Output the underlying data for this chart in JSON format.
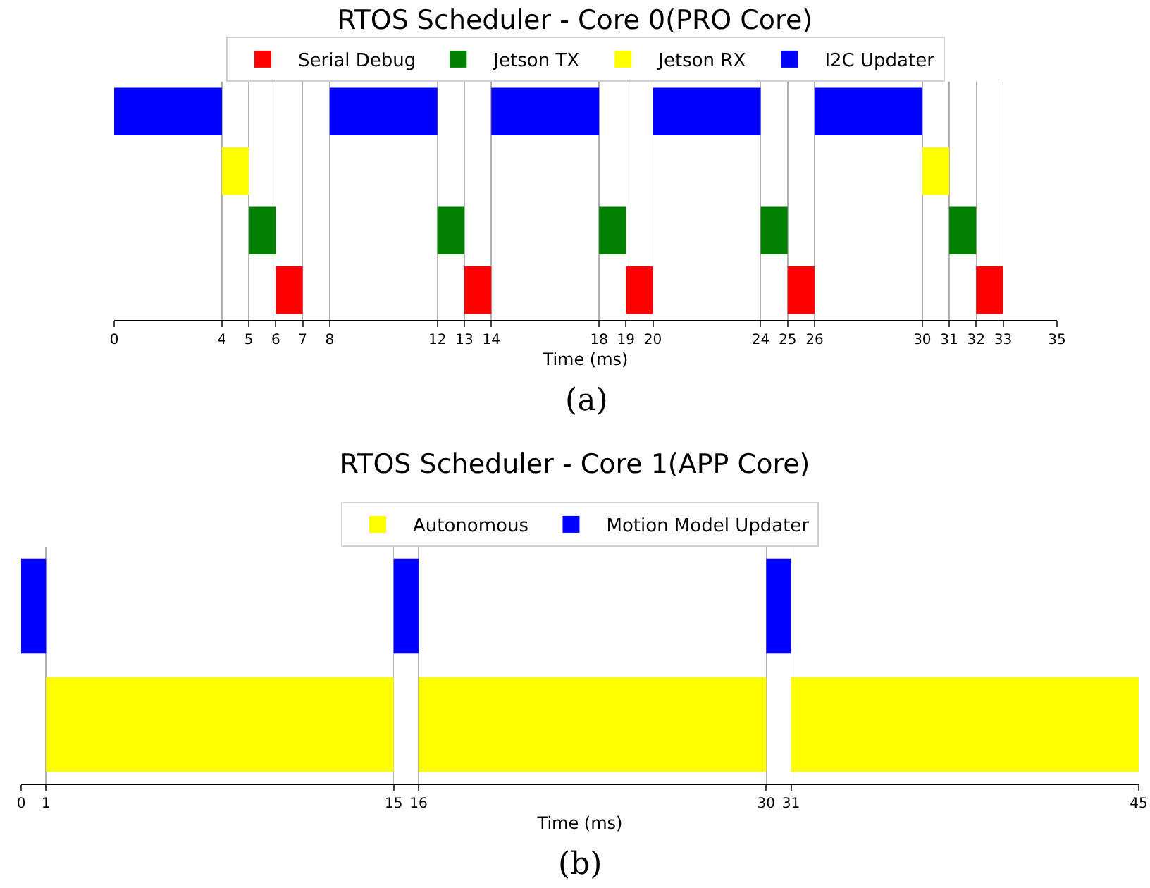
{
  "chart_data": [
    {
      "type": "bar",
      "orientation": "horizontal",
      "title": "RTOS Scheduler - Core 0(PRO Core)",
      "xlabel": "Time (ms)",
      "categories": [
        null,
        null,
        null,
        null
      ],
      "series": [
        {
          "name": "Serial Debug",
          "color": "#ff0000",
          "values": [
            null,
            null,
            null,
            1
          ],
          "base": [
            null,
            null,
            null,
            6
          ]
        },
        {
          "name": "Jetson TX",
          "color": "#008000",
          "values": [
            null,
            null,
            1,
            null
          ],
          "base": [
            null,
            null,
            5,
            null
          ]
        },
        {
          "name": "Jetson RX",
          "color": "#ffff00",
          "values": [
            null,
            1,
            null,
            null
          ],
          "base": [
            null,
            4,
            null,
            null
          ]
        },
        {
          "name": "I2C Updater",
          "color": "#0000ff",
          "values": [
            4,
            null,
            null,
            null
          ],
          "base": [
            0,
            null,
            null,
            null
          ]
        },
        {
          "color": "#ff0000",
          "values": [
            null,
            null,
            null,
            1
          ],
          "base": [
            null,
            null,
            null,
            13
          ]
        },
        {
          "color": "#ff0000",
          "values": [
            null,
            null,
            null,
            1
          ],
          "base": [
            null,
            null,
            null,
            19
          ]
        },
        {
          "color": "#ff0000",
          "values": [
            null,
            null,
            null,
            1
          ],
          "base": [
            null,
            null,
            null,
            25
          ]
        },
        {
          "color": "#ff0000",
          "values": [
            null,
            null,
            null,
            1
          ],
          "base": [
            null,
            null,
            null,
            32
          ]
        },
        {
          "color": "#008000",
          "values": [
            null,
            null,
            1,
            null
          ],
          "base": [
            null,
            null,
            12,
            null
          ]
        },
        {
          "color": "#008000",
          "values": [
            null,
            null,
            1,
            null
          ],
          "base": [
            null,
            null,
            18,
            null
          ]
        },
        {
          "color": "#008000",
          "values": [
            null,
            null,
            1,
            null
          ],
          "base": [
            null,
            null,
            24,
            null
          ]
        },
        {
          "color": "#008000",
          "values": [
            null,
            null,
            1,
            null
          ],
          "base": [
            null,
            null,
            31,
            null
          ]
        },
        {
          "color": "#ffff00",
          "values": [
            null,
            1,
            null,
            null
          ],
          "base": [
            null,
            30,
            null,
            null
          ]
        },
        {
          "color": "#0000ff",
          "values": [
            4,
            null,
            null,
            null
          ],
          "base": [
            8,
            null,
            null,
            null
          ]
        },
        {
          "color": "#0000ff",
          "values": [
            4,
            null,
            null,
            null
          ],
          "base": [
            14,
            null,
            null,
            null
          ]
        },
        {
          "color": "#0000ff",
          "values": [
            4,
            null,
            null,
            null
          ],
          "base": [
            20,
            null,
            null,
            null
          ]
        },
        {
          "color": "#0000ff",
          "values": [
            4,
            null,
            null,
            null
          ],
          "base": [
            26,
            null,
            null,
            null
          ]
        }
      ],
      "xlim": [
        0,
        35
      ],
      "xticks": [
        0,
        4,
        5,
        6,
        7,
        8,
        12,
        13,
        14,
        18,
        19,
        20,
        24,
        25,
        26,
        30,
        31,
        32,
        33,
        35
      ],
      "tick_labels": "x",
      "grid": "x",
      "legend": "top",
      "annotations": [
        "(a)"
      ]
    },
    {
      "type": "bar",
      "orientation": "horizontal",
      "title": "RTOS Scheduler - Core 1(APP Core)",
      "xlabel": "Time (ms)",
      "categories": [
        null,
        null
      ],
      "series": [
        {
          "name": "Autonomous",
          "color": "#ffff00",
          "values": [
            null,
            14
          ],
          "base": [
            null,
            1
          ]
        },
        {
          "name": "Motion Model Updater",
          "color": "#0000ff",
          "values": [
            1,
            null
          ],
          "base": [
            0,
            null
          ]
        },
        {
          "color": "#ffff00",
          "values": [
            null,
            14
          ],
          "base": [
            null,
            16
          ]
        },
        {
          "color": "#ffff00",
          "values": [
            null,
            14
          ],
          "base": [
            null,
            31
          ]
        },
        {
          "color": "#0000ff",
          "values": [
            1,
            null
          ],
          "base": [
            15,
            null
          ]
        },
        {
          "color": "#0000ff",
          "values": [
            1,
            null
          ],
          "base": [
            30,
            null
          ]
        }
      ],
      "xlim": [
        0,
        45
      ],
      "xticks": [
        0,
        1,
        15,
        16,
        30,
        31,
        45
      ],
      "tick_labels": "x",
      "grid": "x",
      "legend": "top",
      "annotations": [
        "(b)"
      ]
    }
  ]
}
